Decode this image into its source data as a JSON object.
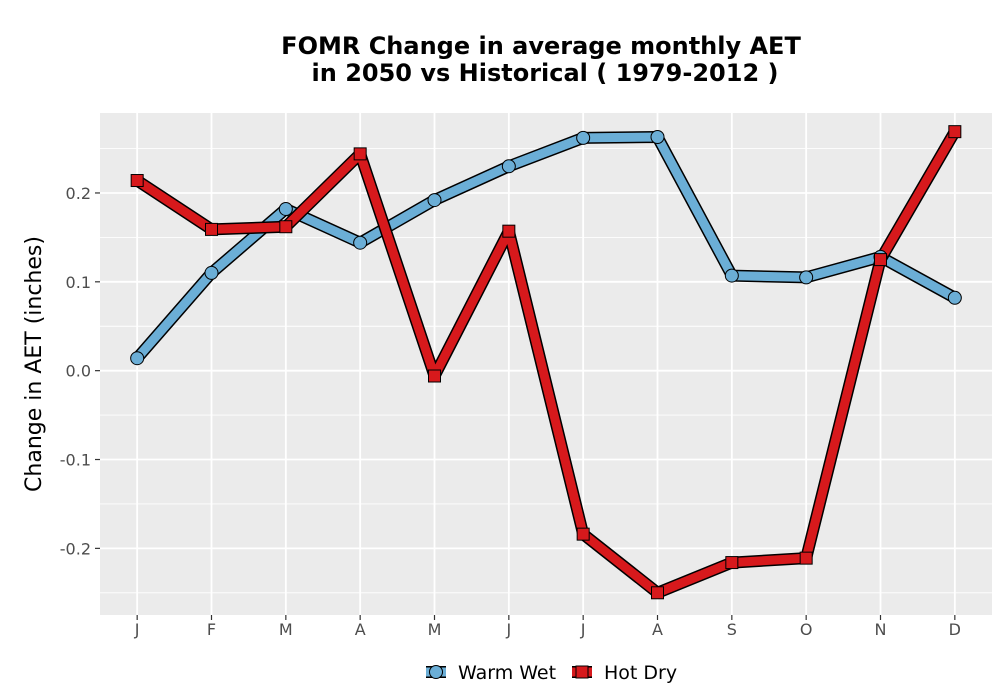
{
  "chart_data": {
    "type": "line",
    "title_line1": "FOMR  Change in average monthly AET",
    "title_line2": "in 2050 vs Historical ( 1979-2012 )",
    "xlabel": "",
    "ylabel": "Change in AET (inches)",
    "categories": [
      "J",
      "F",
      "M",
      "A",
      "M",
      "J",
      "J",
      "A",
      "S",
      "O",
      "N",
      "D"
    ],
    "ylim": [
      -0.275,
      0.29
    ],
    "yticks": [
      -0.2,
      -0.1,
      0.0,
      0.1,
      0.2
    ],
    "ytick_labels": [
      "-0.2",
      "-0.1",
      "0.0",
      "0.1",
      "0.2"
    ],
    "grid": true,
    "legend_position": "bottom",
    "series": [
      {
        "name": "Warm Wet",
        "marker": "circle",
        "color": "#6baed6",
        "values": [
          0.014,
          0.11,
          0.182,
          0.144,
          0.192,
          0.23,
          0.262,
          0.263,
          0.107,
          0.105,
          0.128,
          0.082
        ]
      },
      {
        "name": "Hot Dry",
        "marker": "square",
        "color": "#d7191c",
        "values": [
          0.214,
          0.159,
          0.162,
          0.244,
          -0.006,
          0.157,
          -0.184,
          -0.25,
          -0.216,
          -0.211,
          0.125,
          0.269
        ]
      }
    ]
  }
}
